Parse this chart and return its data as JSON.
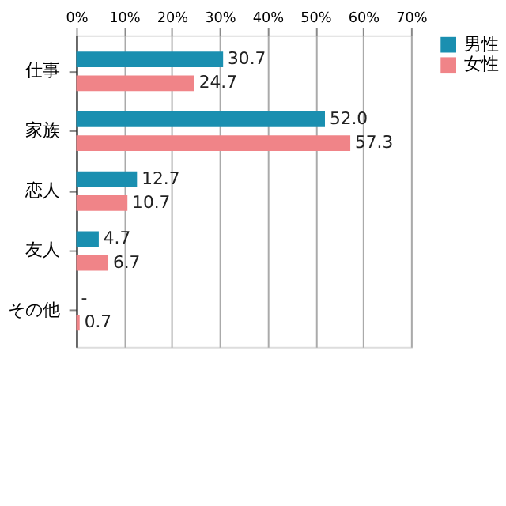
{
  "chart_data": {
    "type": "bar",
    "orientation": "horizontal",
    "categories": [
      "仕事",
      "家族",
      "恋人",
      "友人",
      "その他"
    ],
    "series": [
      {
        "name": "男性",
        "color": "#1a8fb0",
        "values": [
          30.7,
          52.0,
          12.7,
          4.7,
          0
        ],
        "value_labels": [
          "30.7",
          "52.0",
          "12.7",
          "4.7",
          "-"
        ]
      },
      {
        "name": "女性",
        "color": "#f08488",
        "values": [
          24.7,
          57.3,
          10.7,
          6.7,
          0.7
        ],
        "value_labels": [
          "24.7",
          "57.3",
          "10.7",
          "6.7",
          "0.7"
        ]
      }
    ],
    "xlim": [
      0,
      70
    ],
    "xticks": [
      {
        "value": 0,
        "label": "0%"
      },
      {
        "value": 10,
        "label": "10%"
      },
      {
        "value": 20,
        "label": "20%"
      },
      {
        "value": 30,
        "label": "30%"
      },
      {
        "value": 40,
        "label": "40%"
      },
      {
        "value": 50,
        "label": "50%"
      },
      {
        "value": 60,
        "label": "60%"
      },
      {
        "value": 70,
        "label": "70%"
      }
    ],
    "grid": "x",
    "legend": "right"
  }
}
